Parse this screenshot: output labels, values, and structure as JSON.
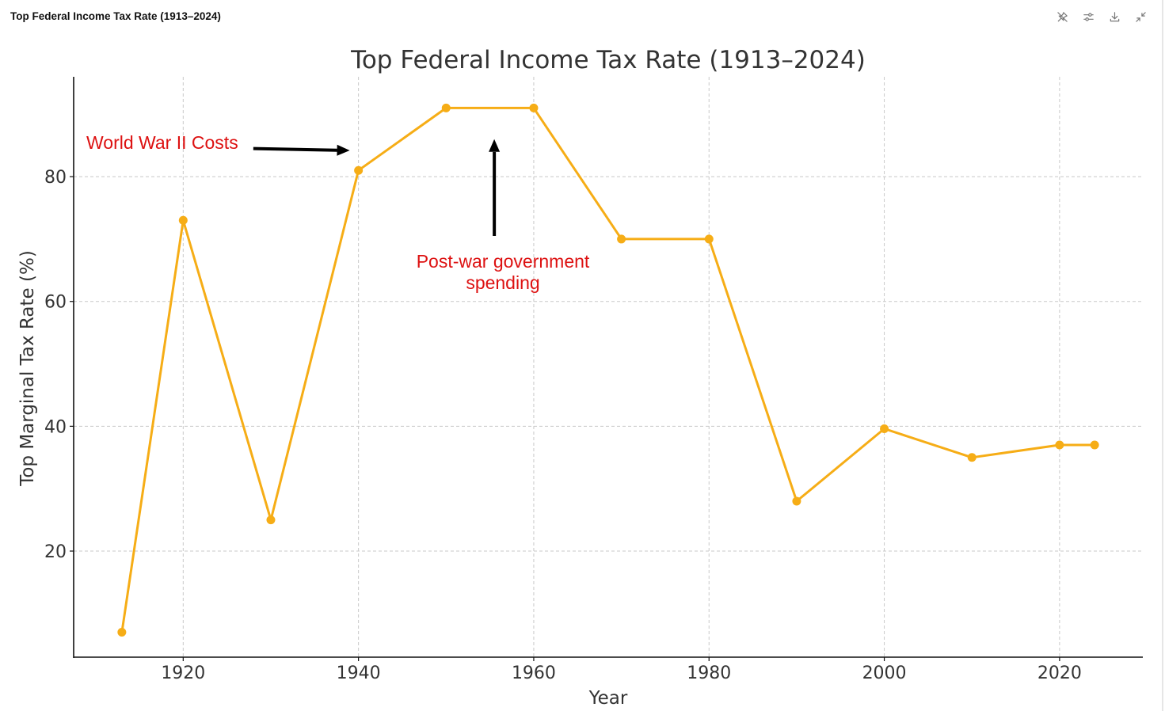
{
  "window": {
    "title": "Top Federal Income Tax Rate (1913–2024)"
  },
  "toolbar": {
    "icons": [
      "unpin-icon",
      "sliders-icon",
      "download-icon",
      "minimize-icon"
    ]
  },
  "colors": {
    "line": "#F6AD16",
    "annotation": "#DD1111",
    "arrow": "#000000",
    "grid": "#c8c8c8",
    "text": "#333333"
  },
  "chart_data": {
    "type": "line",
    "title": "Top Federal Income Tax Rate (1913–2024)",
    "xlabel": "Year",
    "ylabel": "Top Marginal Tax Rate (%)",
    "xlim": [
      1907.5,
      2029.5
    ],
    "ylim": [
      3,
      96
    ],
    "xticks": [
      1920,
      1940,
      1960,
      1980,
      2000,
      2020
    ],
    "yticks": [
      20,
      40,
      60,
      80
    ],
    "grid": true,
    "grid_style": "dashed",
    "x": [
      1913,
      1920,
      1930,
      1940,
      1950,
      1960,
      1970,
      1980,
      1990,
      2000,
      2010,
      2020,
      2024
    ],
    "y": [
      7,
      73,
      25,
      81,
      91,
      91,
      70,
      70,
      28,
      39.6,
      35,
      37,
      37
    ],
    "annotations": [
      {
        "text_lines": [
          "World War II Costs"
        ],
        "arrow_direction": "right",
        "anchor": "left",
        "arrow_from": [
          1928,
          84.5
        ],
        "arrow_to": [
          1939,
          84.2
        ]
      },
      {
        "text_lines": [
          "Post-war government",
          "spending"
        ],
        "arrow_direction": "up",
        "anchor": "middle",
        "arrow_from": [
          1955.5,
          70.5
        ],
        "arrow_to": [
          1955.5,
          86
        ]
      }
    ]
  }
}
